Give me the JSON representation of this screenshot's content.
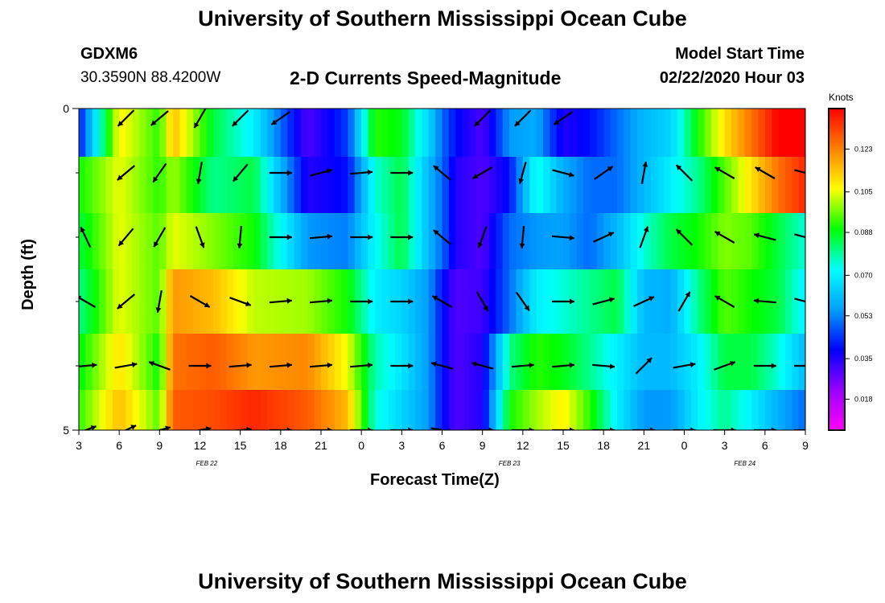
{
  "header": {
    "title_top": "University of Southern Mississippi Ocean Cube",
    "title_bottom": "University of Southern Mississippi Ocean Cube",
    "station_id": "GDXM6",
    "station_coords": "30.3590N 88.4200W",
    "plot_title": "2-D Currents Speed-Magnitude",
    "model_start_label": "Model Start Time",
    "model_start_value": "02/22/2020 Hour 03"
  },
  "chart_data": {
    "type": "heatmap",
    "title": "2-D Currents Speed-Magnitude",
    "xlabel": "Forecast Time(Z)",
    "ylabel": "Depth (ft)",
    "x_range_hours": [
      0,
      54
    ],
    "y_range_ft": [
      0,
      5
    ],
    "x_tick_labels": [
      "3",
      "6",
      "9",
      "12",
      "15",
      "18",
      "21",
      "0",
      "3",
      "6",
      "9",
      "12",
      "15",
      "18",
      "21",
      "0",
      "3",
      "6",
      "9"
    ],
    "y_tick_labels": [
      "0",
      "5"
    ],
    "date_labels": [
      {
        "text": "FEB 22",
        "hour": 9.5
      },
      {
        "text": "FEB 23",
        "hour": 32
      },
      {
        "text": "FEB 24",
        "hour": 49.5
      }
    ],
    "colorbar": {
      "units": "Knots",
      "min": 0.005,
      "max": 0.14,
      "ticks": [
        "0.123",
        "0.105",
        "0.088",
        "0.070",
        "0.053",
        "0.035",
        "0.018"
      ],
      "tick_values": [
        0.123,
        0.105,
        0.088,
        0.07,
        0.053,
        0.035,
        0.018
      ]
    },
    "rows_depth_ft": [
      0.25,
      1.25,
      2.0,
      3.0,
      4.0,
      4.75
    ],
    "speed_keyframes_hours": [
      0,
      3,
      6,
      7,
      10,
      13,
      17,
      20,
      22,
      24,
      26,
      27,
      28,
      30,
      32,
      34,
      36,
      38,
      40,
      42,
      44,
      46,
      48,
      50,
      52,
      54
    ],
    "speed_keyframes_knots": [
      [
        0.04,
        0.108,
        0.092,
        0.115,
        0.085,
        0.07,
        0.03,
        0.045,
        0.092,
        0.088,
        0.065,
        0.05,
        0.04,
        0.03,
        0.055,
        0.058,
        0.035,
        0.04,
        0.05,
        0.06,
        0.065,
        0.09,
        0.11,
        0.125,
        0.14,
        0.14
      ],
      [
        0.09,
        0.105,
        0.092,
        0.1,
        0.08,
        0.085,
        0.035,
        0.04,
        0.075,
        0.085,
        0.06,
        0.05,
        0.035,
        0.03,
        0.04,
        0.075,
        0.058,
        0.05,
        0.05,
        0.06,
        0.07,
        0.08,
        0.095,
        0.11,
        0.125,
        0.135
      ],
      [
        0.085,
        0.105,
        0.095,
        0.105,
        0.098,
        0.09,
        0.055,
        0.052,
        0.072,
        0.085,
        0.06,
        0.05,
        0.035,
        0.03,
        0.05,
        0.055,
        0.056,
        0.05,
        0.06,
        0.075,
        0.085,
        0.09,
        0.098,
        0.095,
        0.085,
        0.075
      ],
      [
        0.08,
        0.105,
        0.095,
        0.12,
        0.115,
        0.102,
        0.1,
        0.09,
        0.07,
        0.065,
        0.055,
        0.04,
        0.03,
        0.032,
        0.05,
        0.07,
        0.075,
        0.08,
        0.085,
        0.06,
        0.058,
        0.08,
        0.095,
        0.09,
        0.085,
        0.07
      ],
      [
        0.088,
        0.11,
        0.09,
        0.125,
        0.128,
        0.12,
        0.122,
        0.105,
        0.078,
        0.068,
        0.055,
        0.04,
        0.03,
        0.035,
        0.08,
        0.092,
        0.088,
        0.08,
        0.07,
        0.06,
        0.06,
        0.07,
        0.085,
        0.085,
        0.075,
        0.06
      ],
      [
        0.092,
        0.115,
        0.095,
        0.128,
        0.13,
        0.135,
        0.128,
        0.115,
        0.075,
        0.065,
        0.055,
        0.04,
        0.03,
        0.035,
        0.09,
        0.1,
        0.108,
        0.092,
        0.07,
        0.055,
        0.055,
        0.07,
        0.08,
        0.07,
        0.058,
        0.05
      ]
    ],
    "vector_columns_hours": [
      0.5,
      3.5,
      6,
      9,
      12,
      15,
      18,
      21,
      24,
      27,
      30,
      33,
      36,
      39,
      42,
      45,
      48,
      51,
      54
    ],
    "vector_rows_depth_ft": [
      0.15,
      1.0,
      2.0,
      3.0,
      4.0,
      5.0
    ],
    "vector_directions_deg": [
      [
        null,
        225,
        220,
        240,
        225,
        215,
        null,
        null,
        null,
        null,
        225,
        225,
        215,
        null,
        null,
        null,
        null,
        null,
        null
      ],
      [
        null,
        220,
        235,
        260,
        230,
        0,
        15,
        5,
        0,
        140,
        210,
        255,
        345,
        35,
        80,
        135,
        150,
        150,
        345
      ],
      [
        115,
        230,
        240,
        290,
        265,
        0,
        5,
        0,
        0,
        140,
        250,
        265,
        355,
        25,
        70,
        135,
        150,
        165,
        345
      ],
      [
        150,
        220,
        260,
        330,
        340,
        5,
        5,
        0,
        0,
        150,
        300,
        305,
        0,
        15,
        25,
        60,
        150,
        175,
        345
      ],
      [
        5,
        10,
        160,
        0,
        5,
        5,
        5,
        5,
        0,
        165,
        165,
        5,
        5,
        355,
        45,
        10,
        20,
        0,
        0
      ],
      [
        20,
        25,
        15,
        10,
        5,
        0,
        0,
        0,
        0,
        350,
        0,
        0,
        0,
        0,
        0,
        0,
        0,
        0,
        0
      ]
    ]
  }
}
